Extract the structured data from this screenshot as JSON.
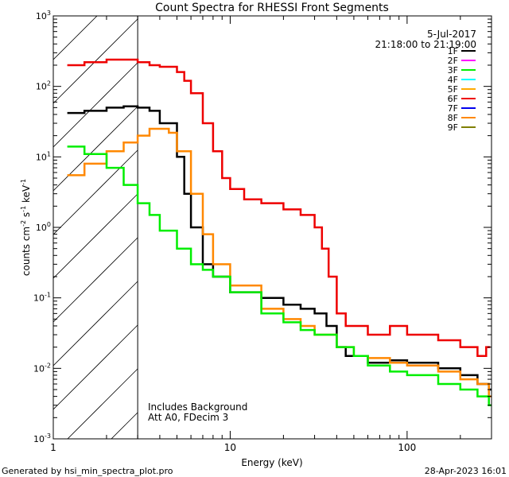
{
  "chart_data": {
    "type": "line",
    "title": "Count Spectra for RHESSI Front Segments",
    "xlabel": "Energy (keV)",
    "ylabel_parts": [
      "counts cm",
      "-2",
      " s",
      "-1",
      " keV",
      "-1"
    ],
    "x_scale": "log",
    "y_scale": "log",
    "xlim": [
      1,
      300
    ],
    "ylim": [
      0.001,
      1000
    ],
    "x_tick_labels": [
      {
        "value": 1,
        "label": "1"
      },
      {
        "value": 10,
        "label": "10"
      },
      {
        "value": 100,
        "label": "100"
      }
    ],
    "y_tick_labels": [
      {
        "value": 1000,
        "base": "10",
        "exp": "3"
      },
      {
        "value": 100,
        "base": "10",
        "exp": "2"
      },
      {
        "value": 10,
        "base": "10",
        "exp": "1"
      },
      {
        "value": 1,
        "base": "10",
        "exp": "0"
      },
      {
        "value": 0.1,
        "base": "10",
        "exp": "-1"
      },
      {
        "value": 0.01,
        "base": "10",
        "exp": "-2"
      },
      {
        "value": 0.001,
        "base": "10",
        "exp": "-3"
      }
    ],
    "date": "5-Jul-2017",
    "time_range": "21:18:00 to 21:19:00",
    "legend": [
      {
        "name": "1F",
        "color": "#000000"
      },
      {
        "name": "2F",
        "color": "#ff00ff"
      },
      {
        "name": "3F",
        "color": "#00ee00"
      },
      {
        "name": "4F",
        "color": "#00ffff"
      },
      {
        "name": "5F",
        "color": "#ffaa00"
      },
      {
        "name": "6F",
        "color": "#ee0000"
      },
      {
        "name": "7F",
        "color": "#0000ee"
      },
      {
        "name": "8F",
        "color": "#ff8800"
      },
      {
        "name": "9F",
        "color": "#7f7f00"
      }
    ],
    "hatched_region_xmax": 3,
    "annotations": [
      "Includes Background",
      "Att A0, FDecim 3"
    ],
    "series": [
      {
        "name": "6F",
        "color": "#ee0000",
        "points": [
          [
            1.2,
            200
          ],
          [
            1.5,
            220
          ],
          [
            2,
            240
          ],
          [
            2.5,
            240
          ],
          [
            3,
            220
          ],
          [
            3.5,
            200
          ],
          [
            4,
            190
          ],
          [
            5,
            160
          ],
          [
            5.5,
            120
          ],
          [
            6,
            80
          ],
          [
            7,
            30
          ],
          [
            8,
            12
          ],
          [
            9,
            5
          ],
          [
            10,
            3.5
          ],
          [
            12,
            2.5
          ],
          [
            15,
            2.2
          ],
          [
            20,
            1.8
          ],
          [
            25,
            1.5
          ],
          [
            30,
            1
          ],
          [
            33,
            0.5
          ],
          [
            36,
            0.2
          ],
          [
            40,
            0.06
          ],
          [
            45,
            0.04
          ],
          [
            60,
            0.03
          ],
          [
            80,
            0.04
          ],
          [
            100,
            0.03
          ],
          [
            150,
            0.025
          ],
          [
            200,
            0.02
          ],
          [
            250,
            0.015
          ],
          [
            280,
            0.02
          ]
        ]
      },
      {
        "name": "1F",
        "color": "#000000",
        "points": [
          [
            1.2,
            42
          ],
          [
            1.5,
            45
          ],
          [
            2,
            50
          ],
          [
            2.5,
            52
          ],
          [
            3,
            50
          ],
          [
            3.5,
            45
          ],
          [
            4,
            30
          ],
          [
            5,
            10
          ],
          [
            5.5,
            3
          ],
          [
            6,
            1
          ],
          [
            7,
            0.3
          ],
          [
            8,
            0.2
          ],
          [
            10,
            0.12
          ],
          [
            15,
            0.1
          ],
          [
            20,
            0.08
          ],
          [
            25,
            0.07
          ],
          [
            30,
            0.06
          ],
          [
            35,
            0.04
          ],
          [
            40,
            0.02
          ],
          [
            45,
            0.015
          ],
          [
            60,
            0.012
          ],
          [
            80,
            0.013
          ],
          [
            100,
            0.012
          ],
          [
            150,
            0.01
          ],
          [
            200,
            0.008
          ],
          [
            250,
            0.006
          ],
          [
            290,
            0.005
          ]
        ]
      },
      {
        "name": "8F",
        "color": "#ff8800",
        "points": [
          [
            1.2,
            5.5
          ],
          [
            1.5,
            8
          ],
          [
            2,
            12
          ],
          [
            2.5,
            16
          ],
          [
            3,
            20
          ],
          [
            3.5,
            25
          ],
          [
            4,
            25
          ],
          [
            4.5,
            22
          ],
          [
            5,
            12
          ],
          [
            6,
            3
          ],
          [
            7,
            0.8
          ],
          [
            8,
            0.3
          ],
          [
            10,
            0.15
          ],
          [
            15,
            0.07
          ],
          [
            20,
            0.05
          ],
          [
            25,
            0.04
          ],
          [
            30,
            0.03
          ],
          [
            40,
            0.02
          ],
          [
            50,
            0.015
          ],
          [
            60,
            0.014
          ],
          [
            80,
            0.012
          ],
          [
            100,
            0.011
          ],
          [
            150,
            0.009
          ],
          [
            200,
            0.007
          ],
          [
            250,
            0.006
          ],
          [
            290,
            0.004
          ]
        ]
      },
      {
        "name": "3F",
        "color": "#00ee00",
        "points": [
          [
            1.2,
            14
          ],
          [
            1.5,
            11
          ],
          [
            2,
            7
          ],
          [
            2.5,
            4
          ],
          [
            3,
            2.2
          ],
          [
            3.5,
            1.5
          ],
          [
            4,
            0.9
          ],
          [
            5,
            0.5
          ],
          [
            6,
            0.3
          ],
          [
            7,
            0.25
          ],
          [
            8,
            0.2
          ],
          [
            10,
            0.12
          ],
          [
            15,
            0.06
          ],
          [
            20,
            0.045
          ],
          [
            25,
            0.035
          ],
          [
            30,
            0.03
          ],
          [
            40,
            0.02
          ],
          [
            50,
            0.015
          ],
          [
            60,
            0.011
          ],
          [
            80,
            0.009
          ],
          [
            100,
            0.008
          ],
          [
            150,
            0.006
          ],
          [
            200,
            0.005
          ],
          [
            250,
            0.004
          ],
          [
            290,
            0.003
          ]
        ]
      }
    ]
  },
  "footer": {
    "left": "Generated by hsi_min_spectra_plot.pro",
    "right": "28-Apr-2023 16:01"
  }
}
